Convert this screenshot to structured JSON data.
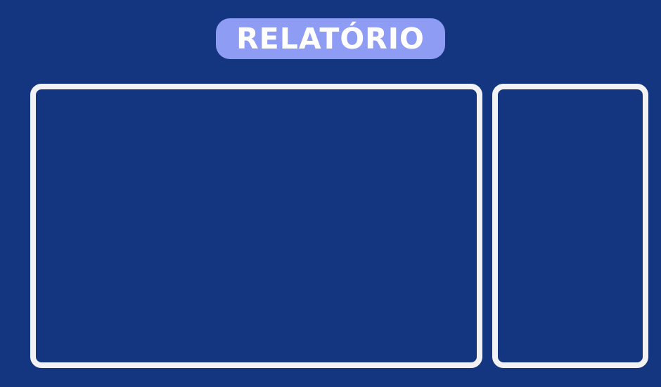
{
  "header": {
    "title": "RELATÓRIO"
  },
  "colors": {
    "background": "#143580",
    "title_badge": "#8e9cf4",
    "title_text": "#ffffff",
    "panel_border": "#f2f2f4"
  }
}
